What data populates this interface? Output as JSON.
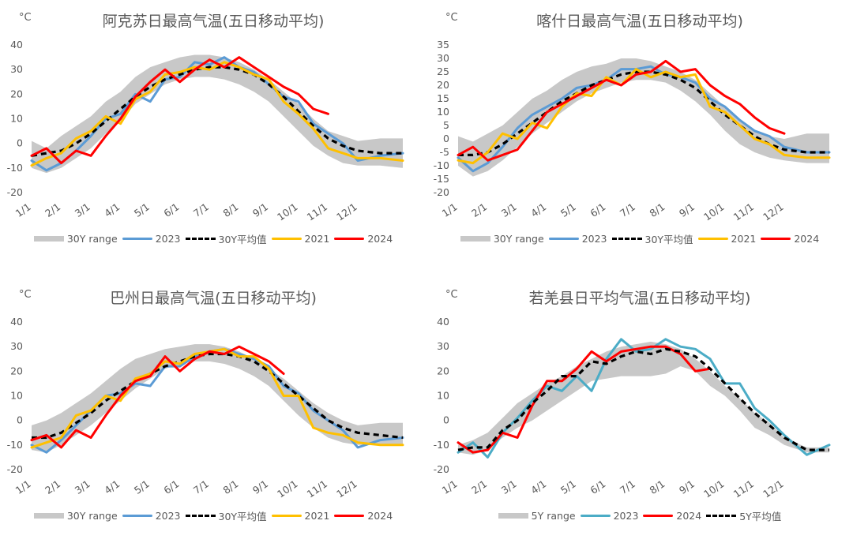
{
  "colors": {
    "range": "#c8c8c8",
    "y2023": "#5b9bd5",
    "y2023_ruoqiang": "#4bacc6",
    "avg": "#000000",
    "y2021": "#ffc000",
    "y2024": "#ff0000",
    "text": "#595959"
  },
  "chart_data": [
    {
      "type": "line",
      "title": "阿克苏日最高气温(五日移动平均)",
      "ylabel": "°C",
      "ylim": [
        -20,
        40
      ],
      "yticks": [
        "40",
        "30",
        "20",
        "10",
        "0",
        "-10",
        "-20"
      ],
      "ytick_values": [
        40,
        30,
        20,
        10,
        0,
        -10,
        -20
      ],
      "categories": [
        "1/1",
        "2/1",
        "3/1",
        "4/1",
        "5/1",
        "6/1",
        "7/1",
        "8/1",
        "9/1",
        "10/1",
        "11/1",
        "12/1"
      ],
      "x": [
        0,
        0.5,
        1,
        1.5,
        2,
        2.5,
        3,
        3.5,
        4,
        4.5,
        5,
        5.5,
        6,
        6.5,
        7,
        7.5,
        8,
        8.5,
        9,
        9.5,
        10,
        10.5,
        11,
        11.5,
        12
      ],
      "legend": [
        "30Y range",
        "2023",
        "30Y平均值",
        "2021",
        "2024"
      ],
      "range": {
        "name": "30Y range",
        "low": [
          -10,
          -12,
          -10,
          -6,
          -2,
          4,
          9,
          16,
          20,
          24,
          26,
          27,
          27,
          26,
          24,
          21,
          17,
          11,
          5,
          -1,
          -5,
          -8,
          -9,
          -9,
          -10
        ],
        "high": [
          1,
          -2,
          3,
          7,
          11,
          17,
          21,
          27,
          31,
          33,
          35,
          36,
          36,
          35,
          33,
          30,
          26,
          21,
          16,
          10,
          5,
          3,
          1,
          2,
          2
        ]
      },
      "series": [
        {
          "name": "2023",
          "key": "y2023",
          "values": [
            -7,
            -11,
            -8,
            -3,
            3,
            10,
            12,
            20,
            17,
            26,
            27,
            33,
            32,
            35,
            31,
            29,
            24,
            19,
            17,
            8,
            4,
            0,
            -7,
            -5,
            -4
          ],
          "dashed": false
        },
        {
          "name": "30Y平均值",
          "key": "avg",
          "values": [
            -5,
            -4,
            -3,
            0,
            4,
            9,
            14,
            19,
            23,
            26,
            28,
            30,
            31,
            31,
            30,
            28,
            24,
            19,
            13,
            7,
            2,
            -1,
            -3,
            -4,
            -4
          ],
          "dashed": true
        },
        {
          "name": "2021",
          "key": "y2021",
          "values": [
            -9,
            -6,
            -4,
            2,
            5,
            11,
            8,
            18,
            21,
            28,
            29,
            31,
            30,
            33,
            31,
            28,
            26,
            17,
            12,
            6,
            -2,
            -4,
            -6,
            -6,
            -7
          ],
          "dashed": false
        },
        {
          "name": "2024",
          "key": "y2024",
          "values": [
            -5,
            -2,
            -8,
            -3,
            -5,
            3,
            10,
            19,
            25,
            30,
            25,
            30,
            34,
            31,
            35,
            31,
            27,
            23,
            20,
            14,
            12,
            null,
            null,
            null,
            null
          ],
          "dashed": false
        }
      ]
    },
    {
      "type": "line",
      "title": "喀什日最高气温(五日移动平均)",
      "ylabel": "°C",
      "ylim": [
        -20,
        35
      ],
      "yticks": [
        "35",
        "30",
        "25",
        "20",
        "15",
        "10",
        "5",
        "0",
        "-5",
        "-10",
        "-15",
        "-20"
      ],
      "ytick_values": [
        35,
        30,
        25,
        20,
        15,
        10,
        5,
        0,
        -5,
        -10,
        -15,
        -20
      ],
      "categories": [
        "1/1",
        "2/1",
        "3/1",
        "4/1",
        "5/1",
        "6/1",
        "7/1",
        "8/1",
        "9/1",
        "10/1",
        "11/1",
        "12/1"
      ],
      "x": [
        0,
        0.5,
        1,
        1.5,
        2,
        2.5,
        3,
        3.5,
        4,
        4.5,
        5,
        5.5,
        6,
        6.5,
        7,
        7.5,
        8,
        8.5,
        9,
        9.5,
        10,
        10.5,
        11,
        11.5,
        12
      ],
      "legend": [
        "30Y range",
        "2023",
        "30Y平均值",
        "2021",
        "2024"
      ],
      "range": {
        "name": "30Y range",
        "low": [
          -10,
          -14,
          -12,
          -8,
          -3,
          2,
          6,
          10,
          14,
          17,
          19,
          21,
          22,
          22,
          21,
          18,
          14,
          9,
          3,
          -2,
          -5,
          -7,
          -8,
          -9,
          -9
        ],
        "high": [
          1,
          -1,
          2,
          5,
          10,
          15,
          18,
          22,
          25,
          27,
          28,
          30,
          30,
          29,
          27,
          25,
          22,
          17,
          12,
          7,
          3,
          1,
          0,
          2,
          2
        ]
      },
      "series": [
        {
          "name": "2023",
          "key": "y2023",
          "values": [
            -7,
            -12,
            -9,
            -3,
            4,
            9,
            12,
            15,
            19,
            20,
            22,
            26,
            26,
            27,
            24,
            23,
            21,
            15,
            12,
            7,
            3,
            1,
            -3,
            -5,
            -5
          ],
          "dashed": false
        },
        {
          "name": "30Y平均值",
          "key": "avg",
          "values": [
            -6,
            -6,
            -5,
            -2,
            2,
            6,
            10,
            14,
            17,
            20,
            22,
            24,
            25,
            25,
            24,
            22,
            19,
            14,
            9,
            5,
            1,
            -2,
            -4,
            -5,
            -5
          ],
          "dashed": true
        },
        {
          "name": "2021",
          "key": "y2021",
          "values": [
            -8,
            -9,
            -5,
            2,
            0,
            6,
            4,
            12,
            17,
            16,
            23,
            20,
            26,
            23,
            25,
            23,
            24,
            12,
            10,
            5,
            0,
            -2,
            -6,
            -7,
            -7
          ],
          "dashed": false
        },
        {
          "name": "2024",
          "key": "y2024",
          "values": [
            -6,
            -3,
            -8,
            -6,
            -4,
            3,
            10,
            13,
            16,
            19,
            22,
            20,
            24,
            25,
            29,
            25,
            26,
            20,
            16,
            13,
            8,
            4,
            2,
            null,
            null
          ],
          "dashed": false
        }
      ]
    },
    {
      "type": "line",
      "title": "巴州日最高气温(五日移动平均)",
      "ylabel": "°C",
      "ylim": [
        -20,
        40
      ],
      "yticks": [
        "40",
        "30",
        "20",
        "10",
        "0",
        "-10",
        "-20"
      ],
      "ytick_values": [
        40,
        30,
        20,
        10,
        0,
        -10,
        -20
      ],
      "categories": [
        "1/1",
        "2/1",
        "3/1",
        "4/1",
        "5/1",
        "6/1",
        "7/1",
        "8/1",
        "9/1",
        "10/1",
        "11/1",
        "12/1"
      ],
      "x": [
        0,
        0.5,
        1,
        1.5,
        2,
        2.5,
        3,
        3.5,
        4,
        4.5,
        5,
        5.5,
        6,
        6.5,
        7,
        7.5,
        8,
        8.5,
        9,
        9.5,
        10,
        10.5,
        11,
        11.5,
        12
      ],
      "legend": [
        "30Y range",
        "2023",
        "30Y平均值",
        "2021",
        "2024"
      ],
      "range": {
        "name": "30Y range",
        "low": [
          -12,
          -13,
          -10,
          -6,
          -2,
          3,
          8,
          13,
          17,
          21,
          23,
          24,
          24,
          23,
          21,
          18,
          14,
          8,
          2,
          -3,
          -7,
          -9,
          -10,
          -10,
          -10
        ],
        "high": [
          -2,
          0,
          3,
          7,
          11,
          16,
          21,
          25,
          27,
          29,
          30,
          31,
          31,
          30,
          28,
          25,
          21,
          17,
          12,
          7,
          3,
          0,
          -2,
          -1,
          -1
        ]
      },
      "series": [
        {
          "name": "2023",
          "key": "y2023",
          "values": [
            -10,
            -13,
            -8,
            -2,
            4,
            10,
            11,
            15,
            14,
            22,
            22,
            26,
            28,
            29,
            27,
            25,
            22,
            14,
            11,
            4,
            0,
            -4,
            -11,
            -8,
            -7
          ],
          "dashed": false
        },
        {
          "name": "30Y平均值",
          "key": "avg",
          "values": [
            -7,
            -7,
            -5,
            -1,
            3,
            8,
            12,
            16,
            19,
            22,
            24,
            26,
            27,
            27,
            26,
            24,
            20,
            15,
            10,
            5,
            0,
            -3,
            -5,
            -6,
            -7
          ],
          "dashed": true
        },
        {
          "name": "2021",
          "key": "y2021",
          "values": [
            -11,
            -9,
            -7,
            2,
            4,
            10,
            8,
            17,
            19,
            24,
            23,
            27,
            28,
            29,
            26,
            26,
            21,
            10,
            10,
            -3,
            -5,
            -6,
            -9,
            -10,
            -10
          ],
          "dashed": false
        },
        {
          "name": "2024",
          "key": "y2024",
          "values": [
            -8,
            -6,
            -11,
            -4,
            -7,
            2,
            10,
            16,
            18,
            26,
            20,
            25,
            28,
            27,
            30,
            27,
            24,
            19,
            null,
            null,
            null,
            null,
            null,
            null,
            null
          ],
          "dashed": false
        }
      ]
    },
    {
      "type": "line",
      "title": "若羌县日平均气温(五日移动平均)",
      "ylabel": "°C",
      "ylim": [
        -20,
        40
      ],
      "yticks": [
        "40",
        "30",
        "20",
        "10",
        "0",
        "-10",
        "-20"
      ],
      "ytick_values": [
        40,
        30,
        20,
        10,
        0,
        -10,
        -20
      ],
      "categories": [
        "1/1",
        "2/1",
        "3/1",
        "4/1",
        "5/1",
        "6/1",
        "7/1",
        "8/1",
        "9/1",
        "10/1",
        "11/1",
        "12/1"
      ],
      "x": [
        0,
        0.5,
        1,
        1.5,
        2,
        2.5,
        3,
        3.5,
        4,
        4.5,
        5,
        5.5,
        6,
        6.5,
        7,
        7.5,
        8,
        8.5,
        9,
        9.5,
        10,
        10.5,
        11,
        11.5,
        12
      ],
      "legend": [
        "5Y range",
        "2023",
        "2024",
        "5Y平均值"
      ],
      "range": {
        "name": "5Y range",
        "low": [
          -13,
          -14,
          -12,
          -7,
          -3,
          0,
          4,
          8,
          12,
          16,
          17,
          18,
          18,
          18,
          19,
          22,
          20,
          14,
          10,
          4,
          -3,
          -6,
          -10,
          -13,
          -13
        ],
        "high": [
          -10,
          -8,
          -5,
          1,
          7,
          11,
          15,
          18,
          22,
          25,
          28,
          30,
          31,
          32,
          31,
          29,
          25,
          20,
          14,
          9,
          3,
          -1,
          -7,
          -11,
          -11
        ]
      },
      "series": [
        {
          "name": "2023",
          "key": "y2023_ruoqiang",
          "values": [
            -13,
            -9,
            -15,
            -5,
            1,
            8,
            14,
            12,
            18,
            12,
            25,
            33,
            28,
            29,
            33,
            30,
            29,
            25,
            15,
            15,
            5,
            0,
            -6,
            -14,
            -10
          ],
          "dashed": false
        },
        {
          "name": "2024",
          "key": "y2024",
          "values": [
            -9,
            -13,
            -12,
            -5,
            -7,
            6,
            16,
            16,
            21,
            28,
            24,
            28,
            29,
            30,
            30,
            27,
            20,
            21,
            null,
            null,
            null,
            null,
            null,
            null,
            null
          ],
          "dashed": false
        },
        {
          "name": "5Y平均值",
          "key": "avg",
          "values": [
            -12,
            -11,
            -11,
            -4,
            0,
            7,
            12,
            18,
            18,
            24,
            23,
            26,
            28,
            27,
            29,
            28,
            26,
            21,
            15,
            9,
            3,
            -2,
            -7,
            -12,
            -12
          ],
          "dashed": true
        }
      ]
    }
  ]
}
